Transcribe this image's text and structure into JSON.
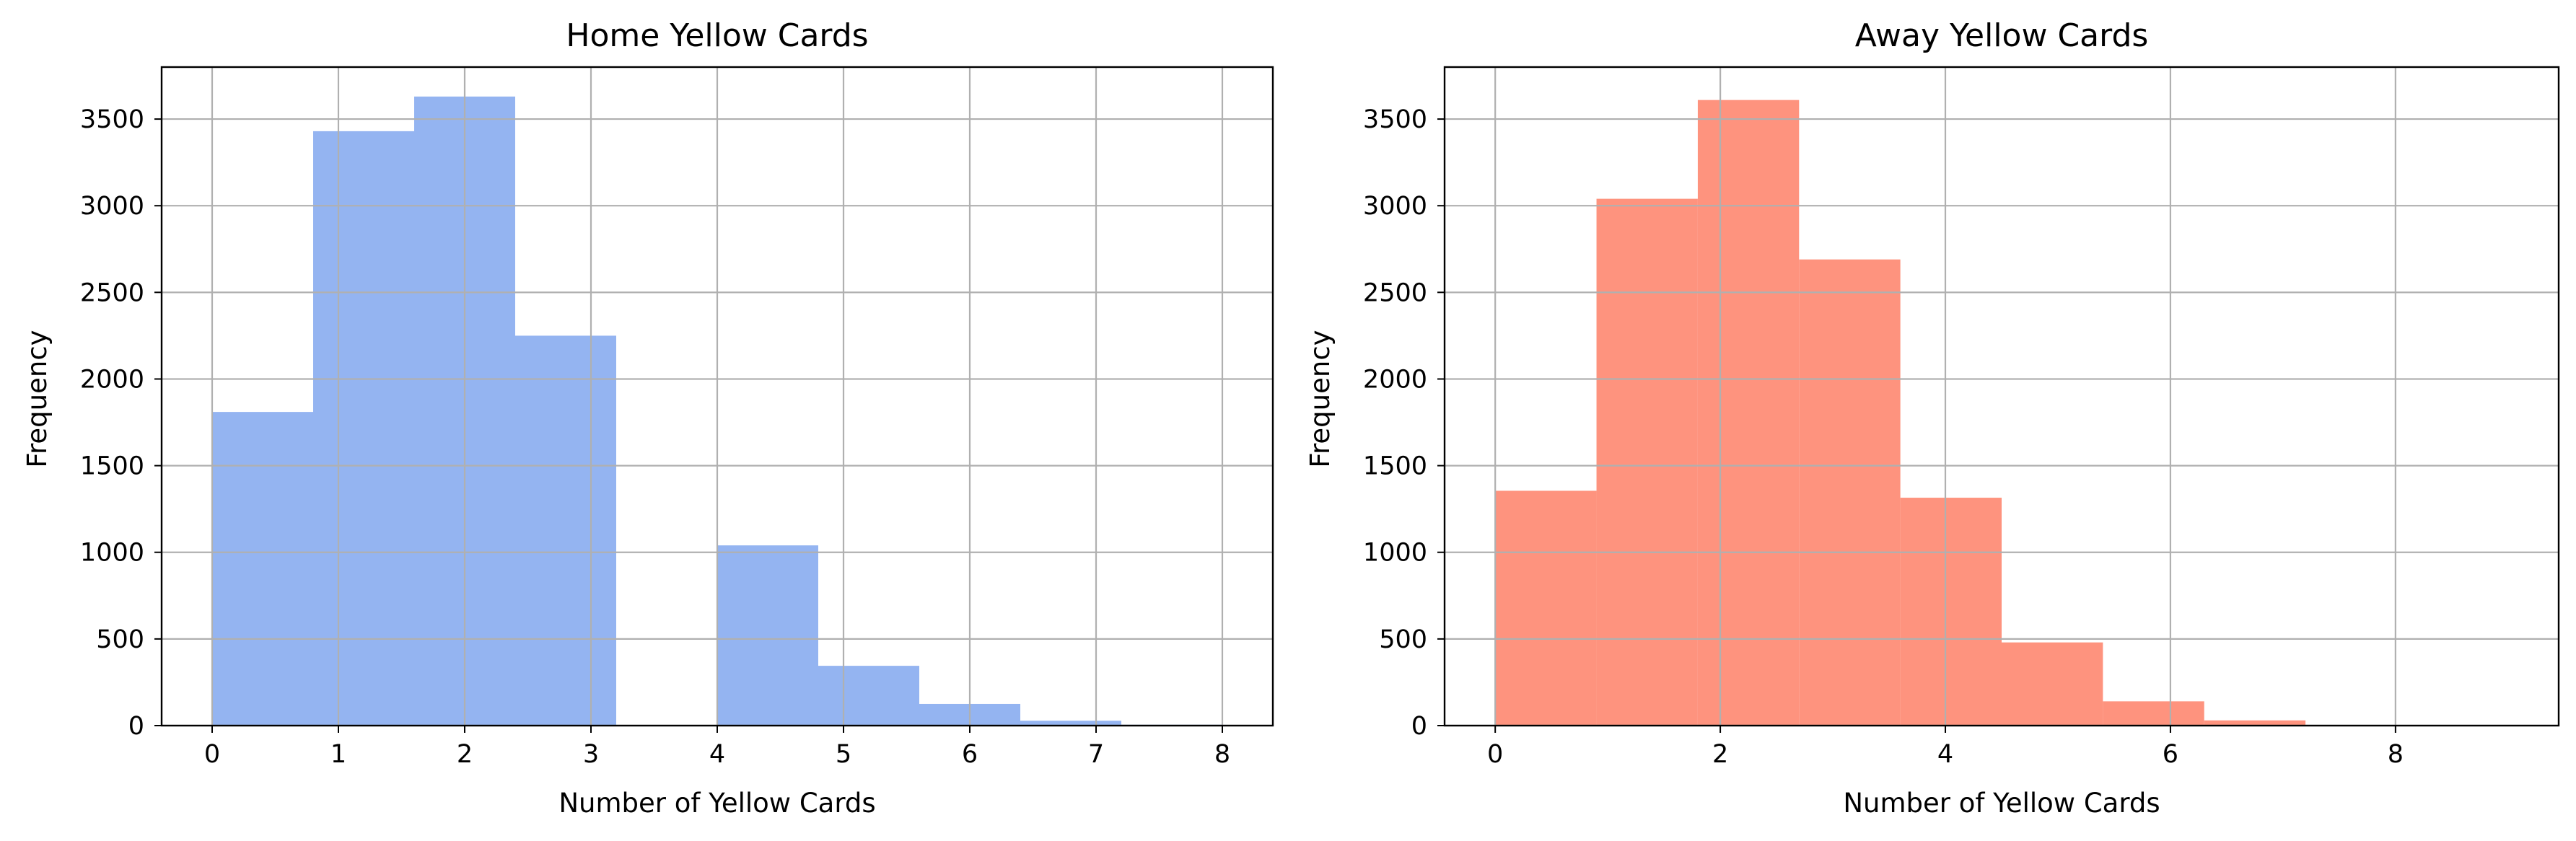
{
  "chart_data": [
    {
      "type": "bar",
      "histogram": true,
      "title": "Home Yellow Cards",
      "xlabel": "Number of Yellow Cards",
      "ylabel": "Frequency",
      "xlim": [
        -0.4,
        8.4
      ],
      "ylim": [
        0,
        3800
      ],
      "grid": true,
      "color": "#94b4f1",
      "bin_edges": [
        0,
        0.8,
        1.6,
        2.4,
        3.2,
        4.0,
        4.8,
        5.6,
        6.4,
        7.2,
        8.0
      ],
      "values": [
        1810,
        3430,
        3630,
        2250,
        0,
        1040,
        345,
        125,
        28,
        5
      ],
      "xticks": [
        "0",
        "1",
        "2",
        "3",
        "4",
        "5",
        "6",
        "7",
        "8"
      ],
      "yticks": [
        "0",
        "500",
        "1000",
        "1500",
        "2000",
        "2500",
        "3000",
        "3500"
      ]
    },
    {
      "type": "bar",
      "histogram": true,
      "title": "Away Yellow Cards",
      "xlabel": "Number of Yellow Cards",
      "ylabel": "Frequency",
      "xlim": [
        -0.45,
        9.45
      ],
      "ylim": [
        0,
        3800
      ],
      "grid": true,
      "color": "#fe937e",
      "bin_edges": [
        0,
        0.9,
        1.8,
        2.7,
        3.6,
        4.5,
        5.4,
        6.3,
        7.2,
        8.1,
        9.0
      ],
      "values": [
        1355,
        3040,
        3610,
        2690,
        1315,
        480,
        140,
        30,
        4,
        2
      ],
      "xticks": [
        "0",
        "2",
        "4",
        "6",
        "8"
      ],
      "yticks": [
        "0",
        "500",
        "1000",
        "1500",
        "2000",
        "2500",
        "3000",
        "3500"
      ]
    }
  ]
}
